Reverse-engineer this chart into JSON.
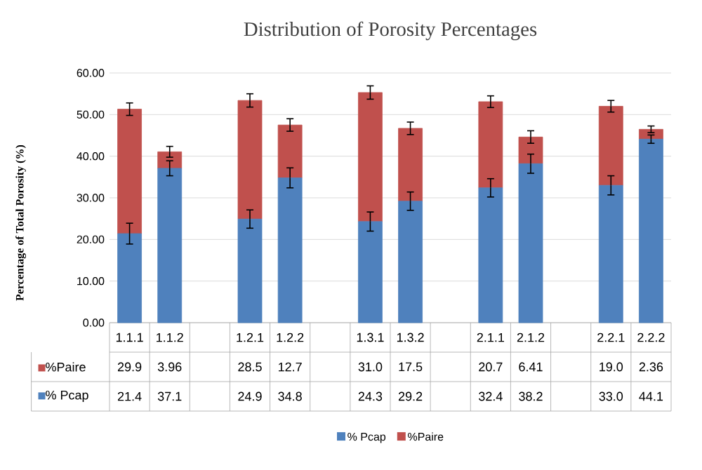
{
  "chart_data": {
    "type": "bar",
    "stacked": true,
    "title": "Distribution of Porosity Percentages",
    "ylabel": "Percentage of Total Porosity (%)",
    "categories": [
      "1.1.1",
      "1.1.2",
      null,
      "1.2.1",
      "1.2.2",
      null,
      "1.3.1",
      "1.3.2",
      null,
      "2.1.1",
      "2.1.2",
      null,
      "2.2.1",
      "2.2.2"
    ],
    "series": [
      {
        "name": "% Pcap",
        "color": "#4f81bd",
        "values": [
          21.4,
          37.1,
          null,
          24.9,
          34.8,
          null,
          24.3,
          29.2,
          null,
          32.4,
          38.2,
          null,
          33.0,
          44.1
        ],
        "errors": [
          2.5,
          1.8,
          null,
          2.2,
          2.4,
          null,
          2.3,
          2.2,
          null,
          2.2,
          2.3,
          null,
          2.3,
          1.0
        ],
        "value_labels": [
          "21.4",
          "37.1",
          null,
          "24.9",
          "34.8",
          null,
          "24.3",
          "29.2",
          null,
          "32.4",
          "38.2",
          null,
          "33.0",
          "44.1"
        ]
      },
      {
        "name": "%Paire",
        "color": "#c0504d",
        "values": [
          29.9,
          3.96,
          null,
          28.5,
          12.7,
          null,
          31.0,
          17.5,
          null,
          20.7,
          6.41,
          null,
          19.0,
          2.36
        ],
        "errors": [
          1.5,
          1.3,
          null,
          1.6,
          1.5,
          null,
          1.6,
          1.5,
          null,
          1.4,
          1.5,
          null,
          1.4,
          0.8
        ],
        "value_labels": [
          "29.9",
          "3.96",
          null,
          "28.5",
          "12.7",
          null,
          "31.0",
          "17.5",
          null,
          "20.7",
          "6.41",
          null,
          "19.0",
          "2.36"
        ]
      }
    ],
    "ylim": [
      0,
      60
    ],
    "yticks": [
      {
        "value": 0,
        "label": "0.00"
      },
      {
        "value": 10,
        "label": "10.00"
      },
      {
        "value": 20,
        "label": "20.00"
      },
      {
        "value": 30,
        "label": "30.00"
      },
      {
        "value": 40,
        "label": "40.00"
      },
      {
        "value": 50,
        "label": "50.00"
      },
      {
        "value": 60,
        "label": "60.00"
      }
    ],
    "grid": "y",
    "legend": "bottom"
  }
}
